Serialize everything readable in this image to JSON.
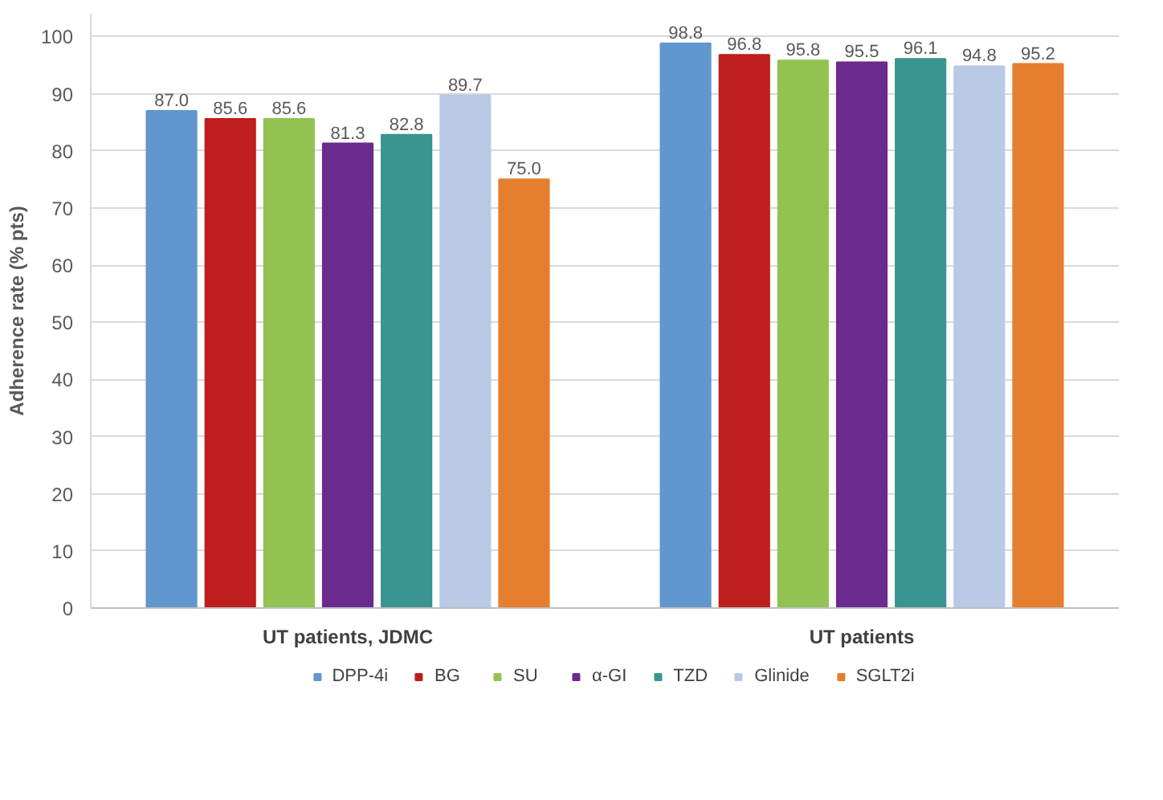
{
  "chart_data": {
    "type": "bar",
    "ylabel": "Adherence rate (% pts)",
    "categories": [
      "UT patients, JDMC",
      "UT patients"
    ],
    "ylim": [
      0,
      104
    ],
    "yticks": [
      0,
      10,
      20,
      30,
      40,
      50,
      60,
      70,
      80,
      90,
      100
    ],
    "grid": "y",
    "legend": "bottom",
    "series": [
      {
        "name": "DPP-4i",
        "color": "#6196cf",
        "values": [
          87.0,
          98.8
        ],
        "value_labels": [
          "87.0",
          "98.8"
        ]
      },
      {
        "name": "BG",
        "color": "#be1e1e",
        "values": [
          85.6,
          96.8
        ],
        "value_labels": [
          "85.6",
          "96.8"
        ]
      },
      {
        "name": "SU",
        "color": "#92c352",
        "values": [
          85.6,
          95.8
        ],
        "value_labels": [
          "85.6",
          "95.8"
        ]
      },
      {
        "name": "α-GI",
        "color": "#6a2a8e",
        "values": [
          81.3,
          95.5
        ],
        "value_labels": [
          "81.3",
          "95.5"
        ]
      },
      {
        "name": "TZD",
        "color": "#3a9490",
        "values": [
          82.8,
          96.1
        ],
        "value_labels": [
          "82.8",
          "96.1"
        ]
      },
      {
        "name": "Glinide",
        "color": "#b9c9e6",
        "values": [
          89.7,
          94.8
        ],
        "value_labels": [
          "89.7",
          "94.8"
        ]
      },
      {
        "name": "SGLT2i",
        "color": "#e57f2e",
        "values": [
          75.0,
          95.2
        ],
        "value_labels": [
          "75.0",
          "95.2"
        ]
      }
    ]
  }
}
